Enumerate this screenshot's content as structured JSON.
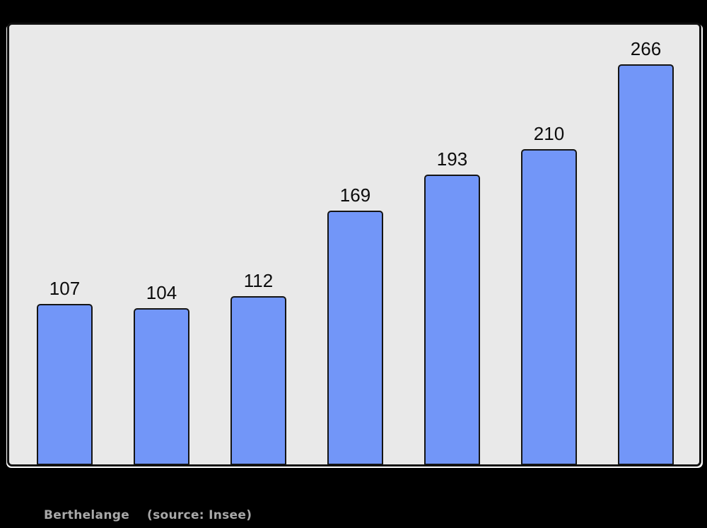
{
  "colors": {
    "page_bg": "#000000",
    "panel_bg": "#e9e9e9",
    "panel_border": "#101010",
    "bar_fill": "#7296f8",
    "bar_border": "#141414",
    "label_color": "#0c0c0c",
    "caption_color": "#a9a9a9"
  },
  "caption": {
    "name": "Berthelange",
    "source": "(source: Insee)"
  },
  "chart_data": {
    "type": "bar",
    "values": [
      107,
      104,
      112,
      169,
      193,
      210,
      266
    ],
    "bar_labels": [
      "107",
      "104",
      "112",
      "169",
      "193",
      "210",
      "266"
    ],
    "categories": [],
    "title": "",
    "xlabel": "",
    "ylabel": "",
    "ylim": [
      0,
      292
    ],
    "grid": false,
    "legend": false,
    "axes_visible": false,
    "value_labels_position": "above-bars",
    "caption": "Berthelange (source: Insee)"
  }
}
